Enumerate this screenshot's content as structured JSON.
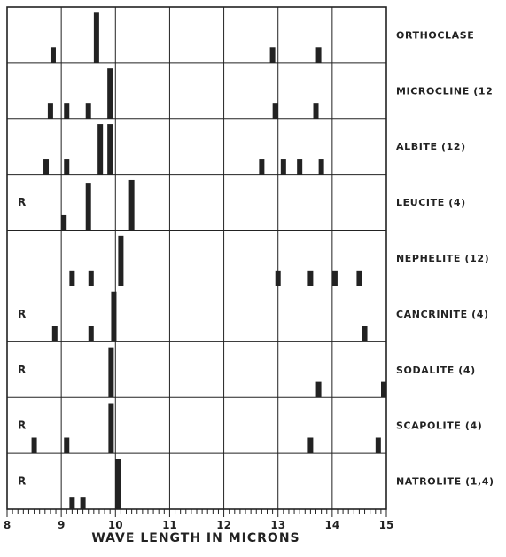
{
  "chart_data": {
    "type": "bar",
    "xlabel": "WAVE LENGTH IN MICRONS",
    "xlim": [
      8,
      15
    ],
    "x_ticks": [
      "8",
      "9",
      "10",
      "11",
      "12",
      "13",
      "14",
      "15"
    ],
    "grid": true,
    "ink_color": "#222222",
    "rows": [
      {
        "name": "ORTHOCLASE",
        "marker": "",
        "bars": [
          {
            "x": 8.85,
            "h": 0.28
          },
          {
            "x": 9.65,
            "h": 0.9
          },
          {
            "x": 12.9,
            "h": 0.28
          },
          {
            "x": 13.75,
            "h": 0.28
          }
        ]
      },
      {
        "name": "MICROCLINE (12",
        "marker": "",
        "bars": [
          {
            "x": 8.8,
            "h": 0.28
          },
          {
            "x": 9.1,
            "h": 0.28
          },
          {
            "x": 9.5,
            "h": 0.28
          },
          {
            "x": 9.9,
            "h": 0.9
          },
          {
            "x": 12.95,
            "h": 0.28
          },
          {
            "x": 13.7,
            "h": 0.28
          }
        ]
      },
      {
        "name": "ALBITE (12)",
        "marker": "",
        "bars": [
          {
            "x": 8.72,
            "h": 0.28
          },
          {
            "x": 9.1,
            "h": 0.28
          },
          {
            "x": 9.72,
            "h": 0.9
          },
          {
            "x": 9.9,
            "h": 0.9
          },
          {
            "x": 12.7,
            "h": 0.28
          },
          {
            "x": 13.1,
            "h": 0.28
          },
          {
            "x": 13.4,
            "h": 0.28
          },
          {
            "x": 13.8,
            "h": 0.28
          }
        ]
      },
      {
        "name": "LEUCITE (4)",
        "marker": "R",
        "bars": [
          {
            "x": 9.05,
            "h": 0.28
          },
          {
            "x": 9.5,
            "h": 0.85
          },
          {
            "x": 10.3,
            "h": 0.9
          }
        ]
      },
      {
        "name": "NEPHELITE (12)",
        "marker": "",
        "bars": [
          {
            "x": 9.2,
            "h": 0.28
          },
          {
            "x": 9.55,
            "h": 0.28
          },
          {
            "x": 10.1,
            "h": 0.9
          },
          {
            "x": 13.0,
            "h": 0.28
          },
          {
            "x": 13.6,
            "h": 0.28
          },
          {
            "x": 14.05,
            "h": 0.28
          },
          {
            "x": 14.5,
            "h": 0.28
          }
        ]
      },
      {
        "name": "CANCRINITE (4)",
        "marker": "R",
        "bars": [
          {
            "x": 8.88,
            "h": 0.28
          },
          {
            "x": 9.55,
            "h": 0.28
          },
          {
            "x": 9.97,
            "h": 0.9
          },
          {
            "x": 14.6,
            "h": 0.28
          }
        ]
      },
      {
        "name": "SODALITE (4)",
        "marker": "R",
        "bars": [
          {
            "x": 9.92,
            "h": 0.9
          },
          {
            "x": 13.75,
            "h": 0.28
          },
          {
            "x": 15.0,
            "h": 0.28
          }
        ]
      },
      {
        "name": "SCAPOLITE (4)",
        "marker": "R",
        "bars": [
          {
            "x": 8.5,
            "h": 0.28
          },
          {
            "x": 9.1,
            "h": 0.28
          },
          {
            "x": 9.92,
            "h": 0.9
          },
          {
            "x": 13.6,
            "h": 0.28
          },
          {
            "x": 14.85,
            "h": 0.28
          }
        ]
      },
      {
        "name": "NATROLITE (1,4)",
        "marker": "R",
        "bars": [
          {
            "x": 9.2,
            "h": 0.22
          },
          {
            "x": 9.4,
            "h": 0.22
          },
          {
            "x": 10.05,
            "h": 0.9
          }
        ]
      }
    ]
  }
}
